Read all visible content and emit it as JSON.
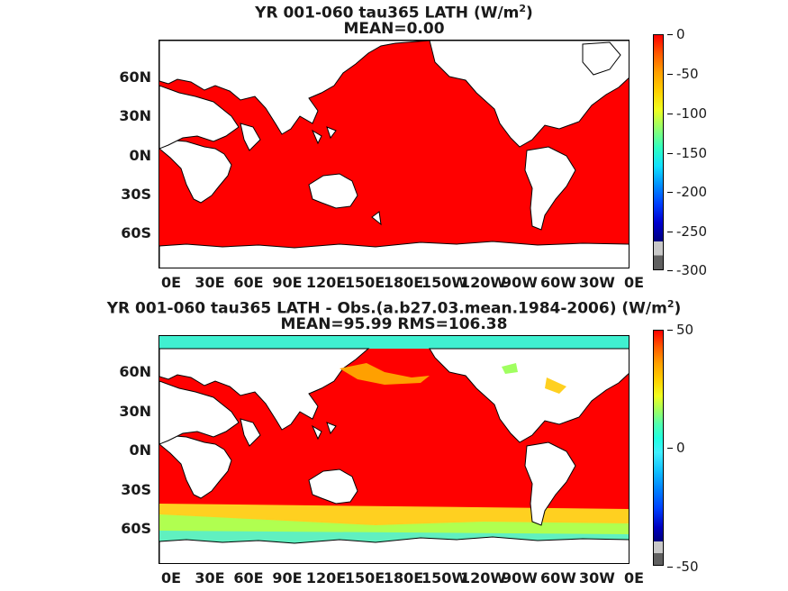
{
  "panels": [
    {
      "title_line1": "YR 001-060 tau365  LATH (W/m",
      "title_sup": "2",
      "title_end": ")",
      "title_line2": "MEAN=0.00",
      "colorbar": {
        "ticks": [
          "0",
          "-50",
          "-100",
          "-150",
          "-200",
          "-250",
          "-300"
        ]
      }
    },
    {
      "title_line1": "YR 001-060 tau365 LATH - Obs.(a.b27.03.mean.1984-2006) (W/m",
      "title_sup": "2",
      "title_end": ")",
      "title_line2": "MEAN=95.99 RMS=106.38",
      "colorbar": {
        "ticks": [
          "50",
          "0",
          "-50"
        ]
      }
    }
  ],
  "lat_labels": [
    "60N",
    "30N",
    "0N",
    "30S",
    "60S"
  ],
  "lon_labels": [
    "0E",
    "30E",
    "60E",
    "90E",
    "120E",
    "150E",
    "180E",
    "150W",
    "120W",
    "90W",
    "60W",
    "30W",
    "0E"
  ],
  "colors": {
    "ocean_red": "#ff0000",
    "land": "#ffffff",
    "coast": "#000000"
  }
}
